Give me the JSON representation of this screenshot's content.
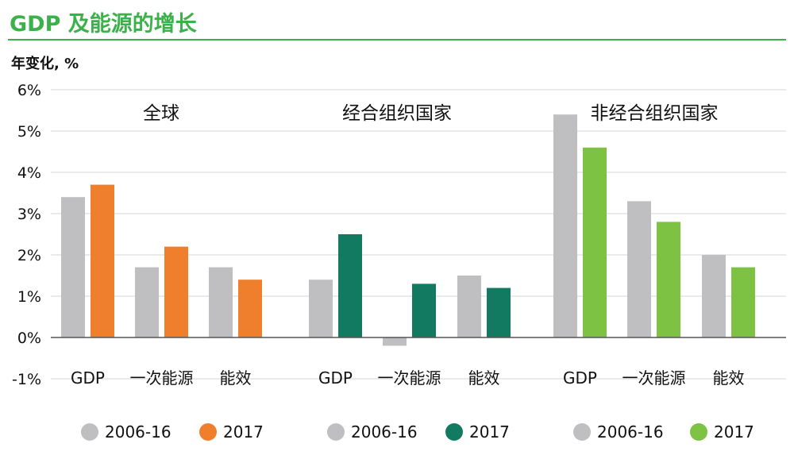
{
  "header": {
    "title": "GDP 及能源的增长",
    "unit_label": "年变化, %"
  },
  "chart_data": [
    {
      "type": "bar",
      "title": "全球",
      "categories": [
        "GDP",
        "一次能源",
        "能效"
      ],
      "series": [
        {
          "name": "2006-16",
          "values": [
            3.4,
            1.7,
            1.7
          ],
          "color": "#bfbfc1"
        },
        {
          "name": "2017",
          "values": [
            3.7,
            2.2,
            1.4
          ],
          "color": "#f07f2d"
        }
      ],
      "ylim": [
        -1,
        6
      ],
      "yticks": [
        "-1%",
        "0%",
        "1%",
        "2%",
        "3%",
        "4%",
        "5%",
        "6%"
      ],
      "grid": true
    },
    {
      "type": "bar",
      "title": "经合组织国家",
      "categories": [
        "GDP",
        "一次能源",
        "能效"
      ],
      "series": [
        {
          "name": "2006-16",
          "values": [
            1.4,
            -0.2,
            1.5
          ],
          "color": "#bfbfc1"
        },
        {
          "name": "2017",
          "values": [
            2.5,
            1.3,
            1.2
          ],
          "color": "#127a60"
        }
      ],
      "ylim": [
        -1,
        6
      ],
      "grid": true
    },
    {
      "type": "bar",
      "title": "非经合组织国家",
      "categories": [
        "GDP",
        "一次能源",
        "能效"
      ],
      "series": [
        {
          "name": "2006-16",
          "values": [
            5.4,
            3.3,
            2.0
          ],
          "color": "#bfbfc1"
        },
        {
          "name": "2017",
          "values": [
            4.6,
            2.8,
            1.7
          ],
          "color": "#7dc243"
        }
      ],
      "ylim": [
        -1,
        6
      ],
      "grid": true
    }
  ]
}
